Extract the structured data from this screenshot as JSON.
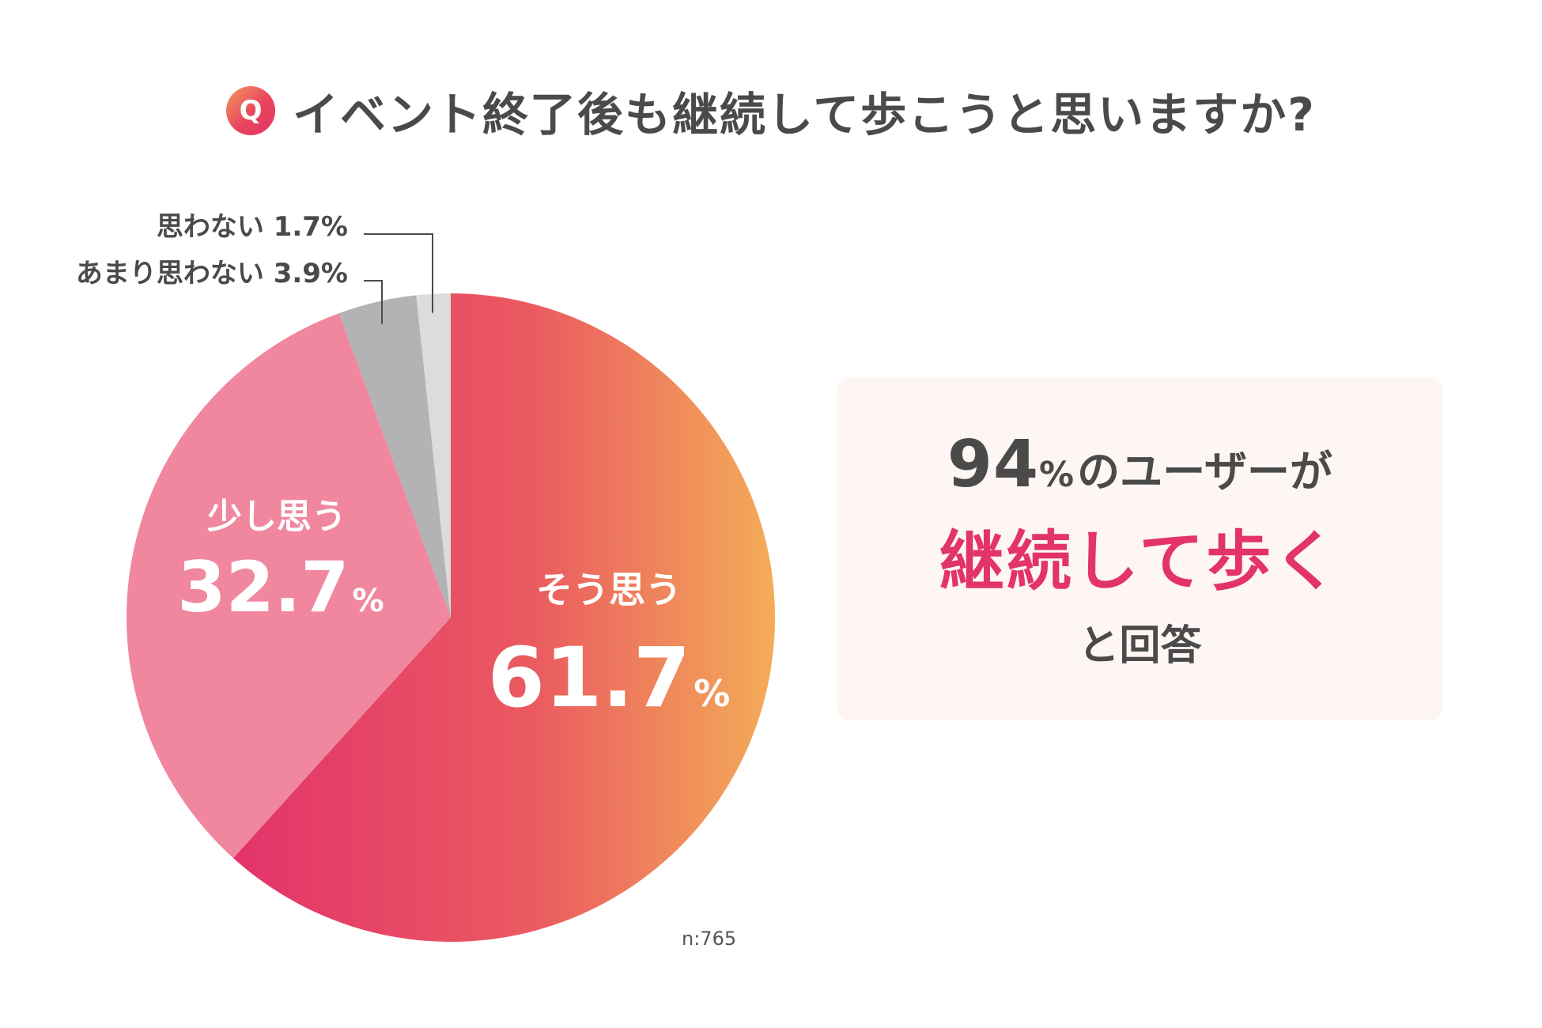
{
  "header": {
    "badge": "Q",
    "question": "イベント終了後も継続して歩こうと思いますか?"
  },
  "chart_data": {
    "type": "pie",
    "title": "イベント終了後も継続して歩こうと思いますか?",
    "slices": [
      {
        "label": "そう思う",
        "value": 61.7,
        "pct_text": "61.7",
        "unit": "%",
        "color": "#e9455f"
      },
      {
        "label": "少し思う",
        "value": 32.7,
        "pct_text": "32.7",
        "unit": "%",
        "color": "#f0879f"
      },
      {
        "label": "あまり思わない",
        "value": 3.9,
        "pct_text": "3.9%",
        "unit": "%",
        "color": "#b3b3b6"
      },
      {
        "label": "思わない",
        "value": 1.7,
        "pct_text": "1.7%",
        "unit": "%",
        "color": "#dcdcdd"
      }
    ],
    "gradient_colors": [
      "#e3336b",
      "#e9455f",
      "#f4ac58"
    ],
    "sample_size": "n:765"
  },
  "summary": {
    "number": "94",
    "percent_sign": "%",
    "text": "のユーザーが",
    "highlight": "継続して歩く",
    "answer": "と回答",
    "highlight_color": "#e3336b",
    "background_color": "#fdf6f2"
  }
}
